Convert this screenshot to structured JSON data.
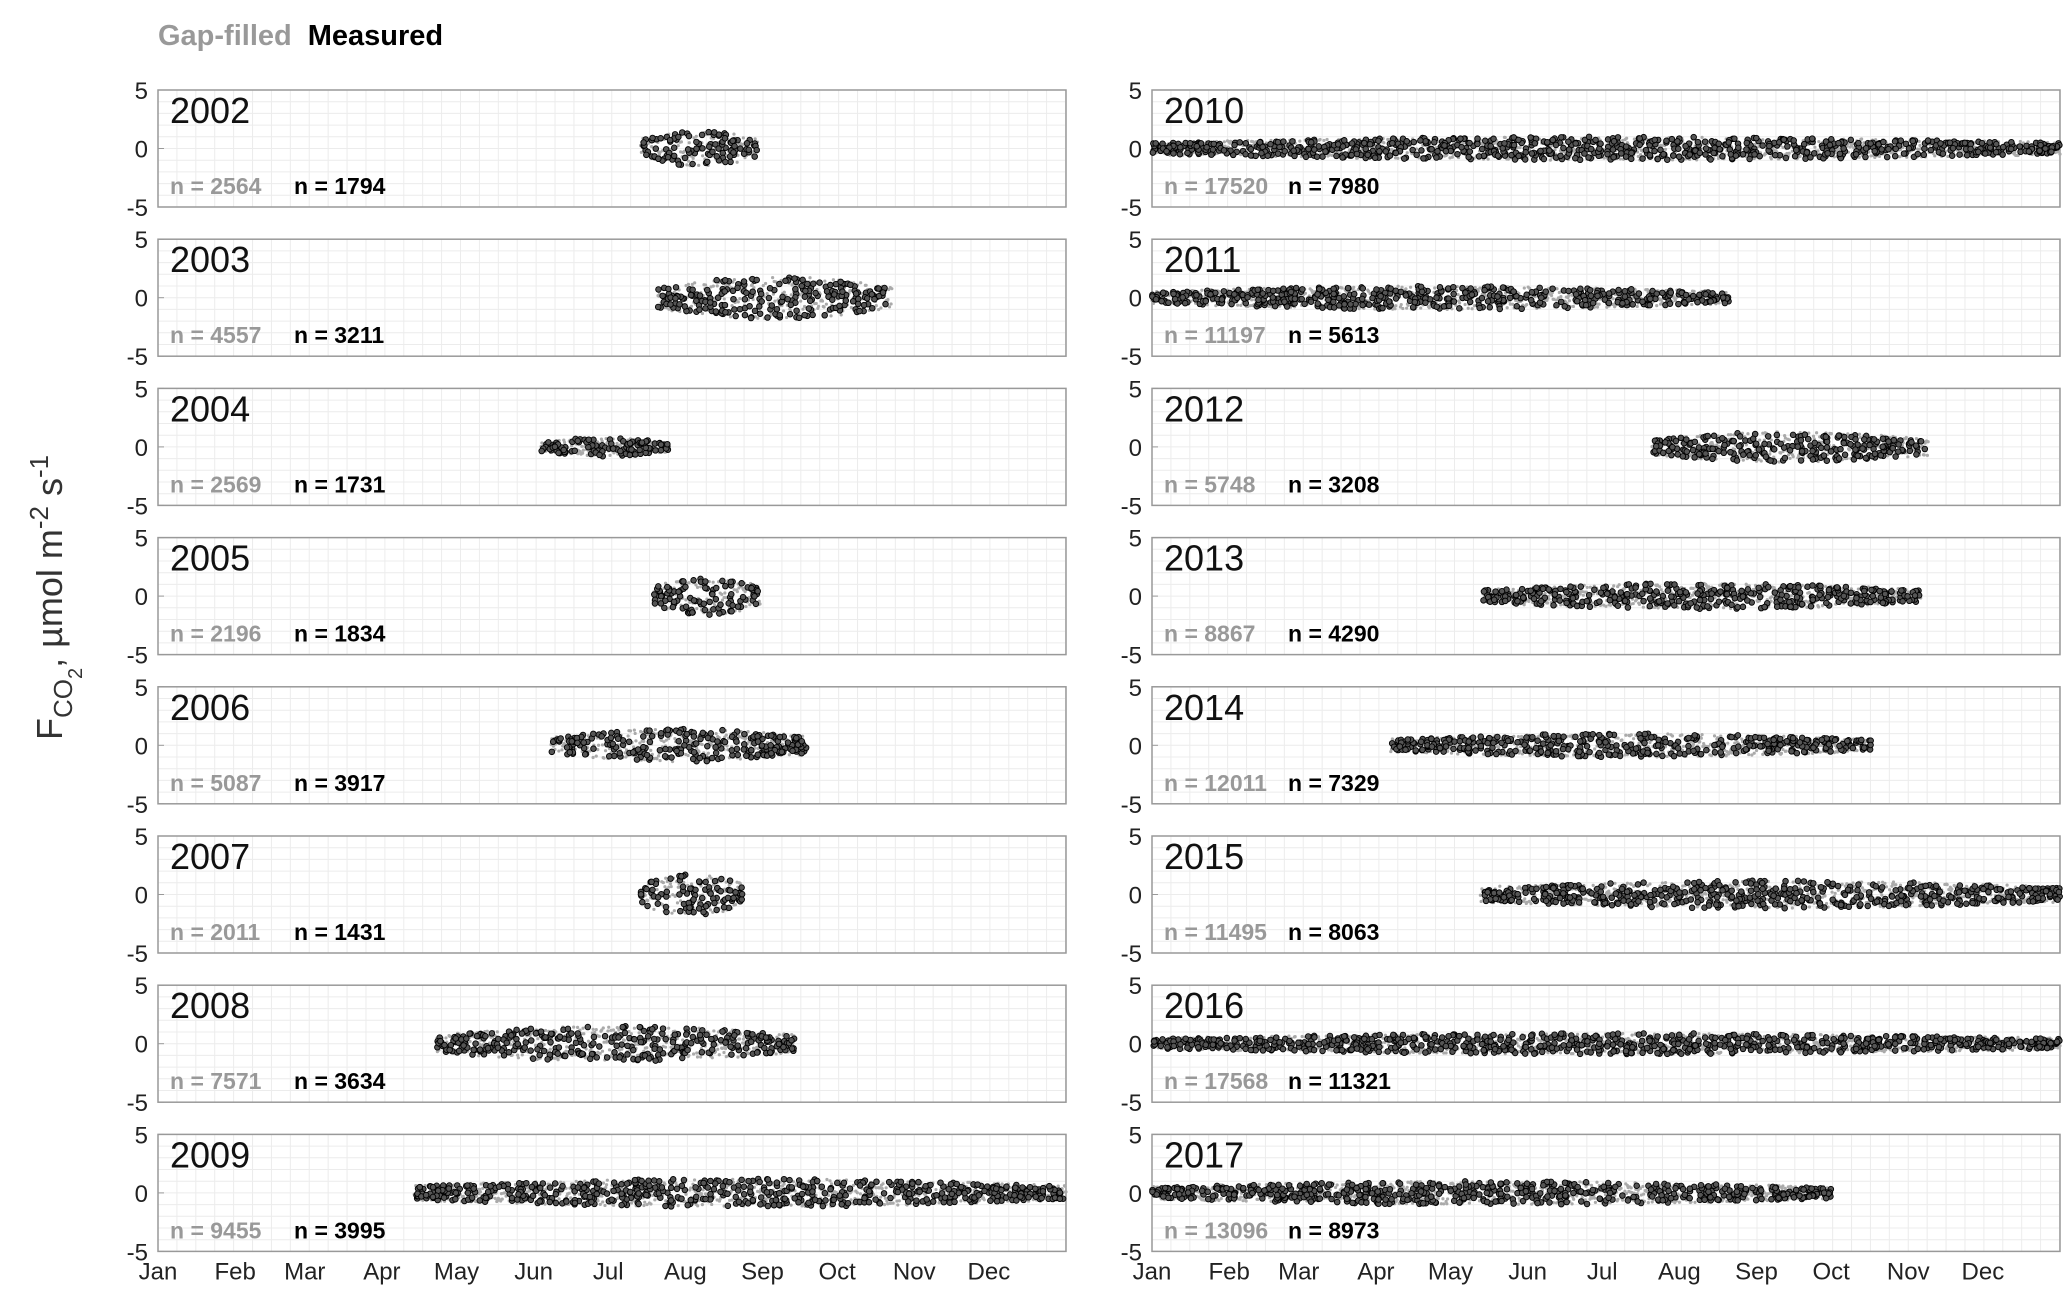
{
  "legend": {
    "gap_filled": "Gap-filled",
    "measured": "Measured"
  },
  "colors": {
    "gap_filled": "#999999",
    "measured": "#000000",
    "grid": "#e6e6e6",
    "axis": "#999999"
  },
  "chart_data": {
    "type": "scatter",
    "ylabel": {
      "main": "F",
      "sub": "CO",
      "sub2": "2",
      "unit": ", µmol m",
      "sup1": "-2",
      "mid": " s",
      "sup2": "-1"
    },
    "ylim": [
      -5,
      5
    ],
    "yticks": [
      5,
      0,
      -5
    ],
    "xlim": [
      1,
      366
    ],
    "xunit": "day of year",
    "month_labels": [
      "Jan",
      "Feb",
      "Mar",
      "Apr",
      "May",
      "Jun",
      "Jul",
      "Aug",
      "Sep",
      "Oct",
      "Nov",
      "Dec"
    ],
    "month_starts": [
      1,
      32,
      60,
      91,
      121,
      152,
      182,
      213,
      244,
      274,
      305,
      335
    ],
    "grid": true,
    "panels": [
      {
        "year": "2002",
        "n_gap": "n = 2564",
        "n_meas": "n = 1794",
        "start": 195,
        "end": 242,
        "spread": 1.5
      },
      {
        "year": "2003",
        "n_gap": "n = 4557",
        "n_meas": "n = 3211",
        "start": 202,
        "end": 296,
        "spread": 1.8
      },
      {
        "year": "2004",
        "n_gap": "n = 2569",
        "n_meas": "n = 1731",
        "start": 155,
        "end": 206,
        "spread": 0.8
      },
      {
        "year": "2005",
        "n_gap": "n = 2196",
        "n_meas": "n = 1834",
        "start": 200,
        "end": 243,
        "spread": 1.6
      },
      {
        "year": "2006",
        "n_gap": "n = 5087",
        "n_meas": "n = 3917",
        "start": 159,
        "end": 262,
        "spread": 1.4
      },
      {
        "year": "2007",
        "n_gap": "n = 2011",
        "n_meas": "n = 1431",
        "start": 195,
        "end": 236,
        "spread": 1.8
      },
      {
        "year": "2008",
        "n_gap": "n = 7571",
        "n_meas": "n = 3634",
        "start": 113,
        "end": 257,
        "spread": 1.5
      },
      {
        "year": "2009",
        "n_gap": "n = 9455",
        "n_meas": "n = 3995",
        "start": 104,
        "end": 366,
        "spread": 1.2
      },
      {
        "year": "2010",
        "n_gap": "n = 17520",
        "n_meas": "n = 7980",
        "start": 1,
        "end": 366,
        "spread": 1.0
      },
      {
        "year": "2011",
        "n_gap": "n = 11197",
        "n_meas": "n = 5613",
        "start": 1,
        "end": 233,
        "spread": 1.0
      },
      {
        "year": "2012",
        "n_gap": "n = 5748",
        "n_meas": "n = 3208",
        "start": 202,
        "end": 313,
        "spread": 1.3
      },
      {
        "year": "2013",
        "n_gap": "n = 8867",
        "n_meas": "n = 4290",
        "start": 134,
        "end": 310,
        "spread": 1.1
      },
      {
        "year": "2014",
        "n_gap": "n = 12011",
        "n_meas": "n = 7329",
        "start": 97,
        "end": 290,
        "spread": 1.0
      },
      {
        "year": "2015",
        "n_gap": "n = 11495",
        "n_meas": "n = 8063",
        "start": 133,
        "end": 366,
        "spread": 1.2
      },
      {
        "year": "2016",
        "n_gap": "n = 17568",
        "n_meas": "n = 11321",
        "start": 1,
        "end": 366,
        "spread": 0.9
      },
      {
        "year": "2017",
        "n_gap": "n = 13096",
        "n_meas": "n = 8973",
        "start": 1,
        "end": 274,
        "spread": 1.0
      }
    ]
  }
}
